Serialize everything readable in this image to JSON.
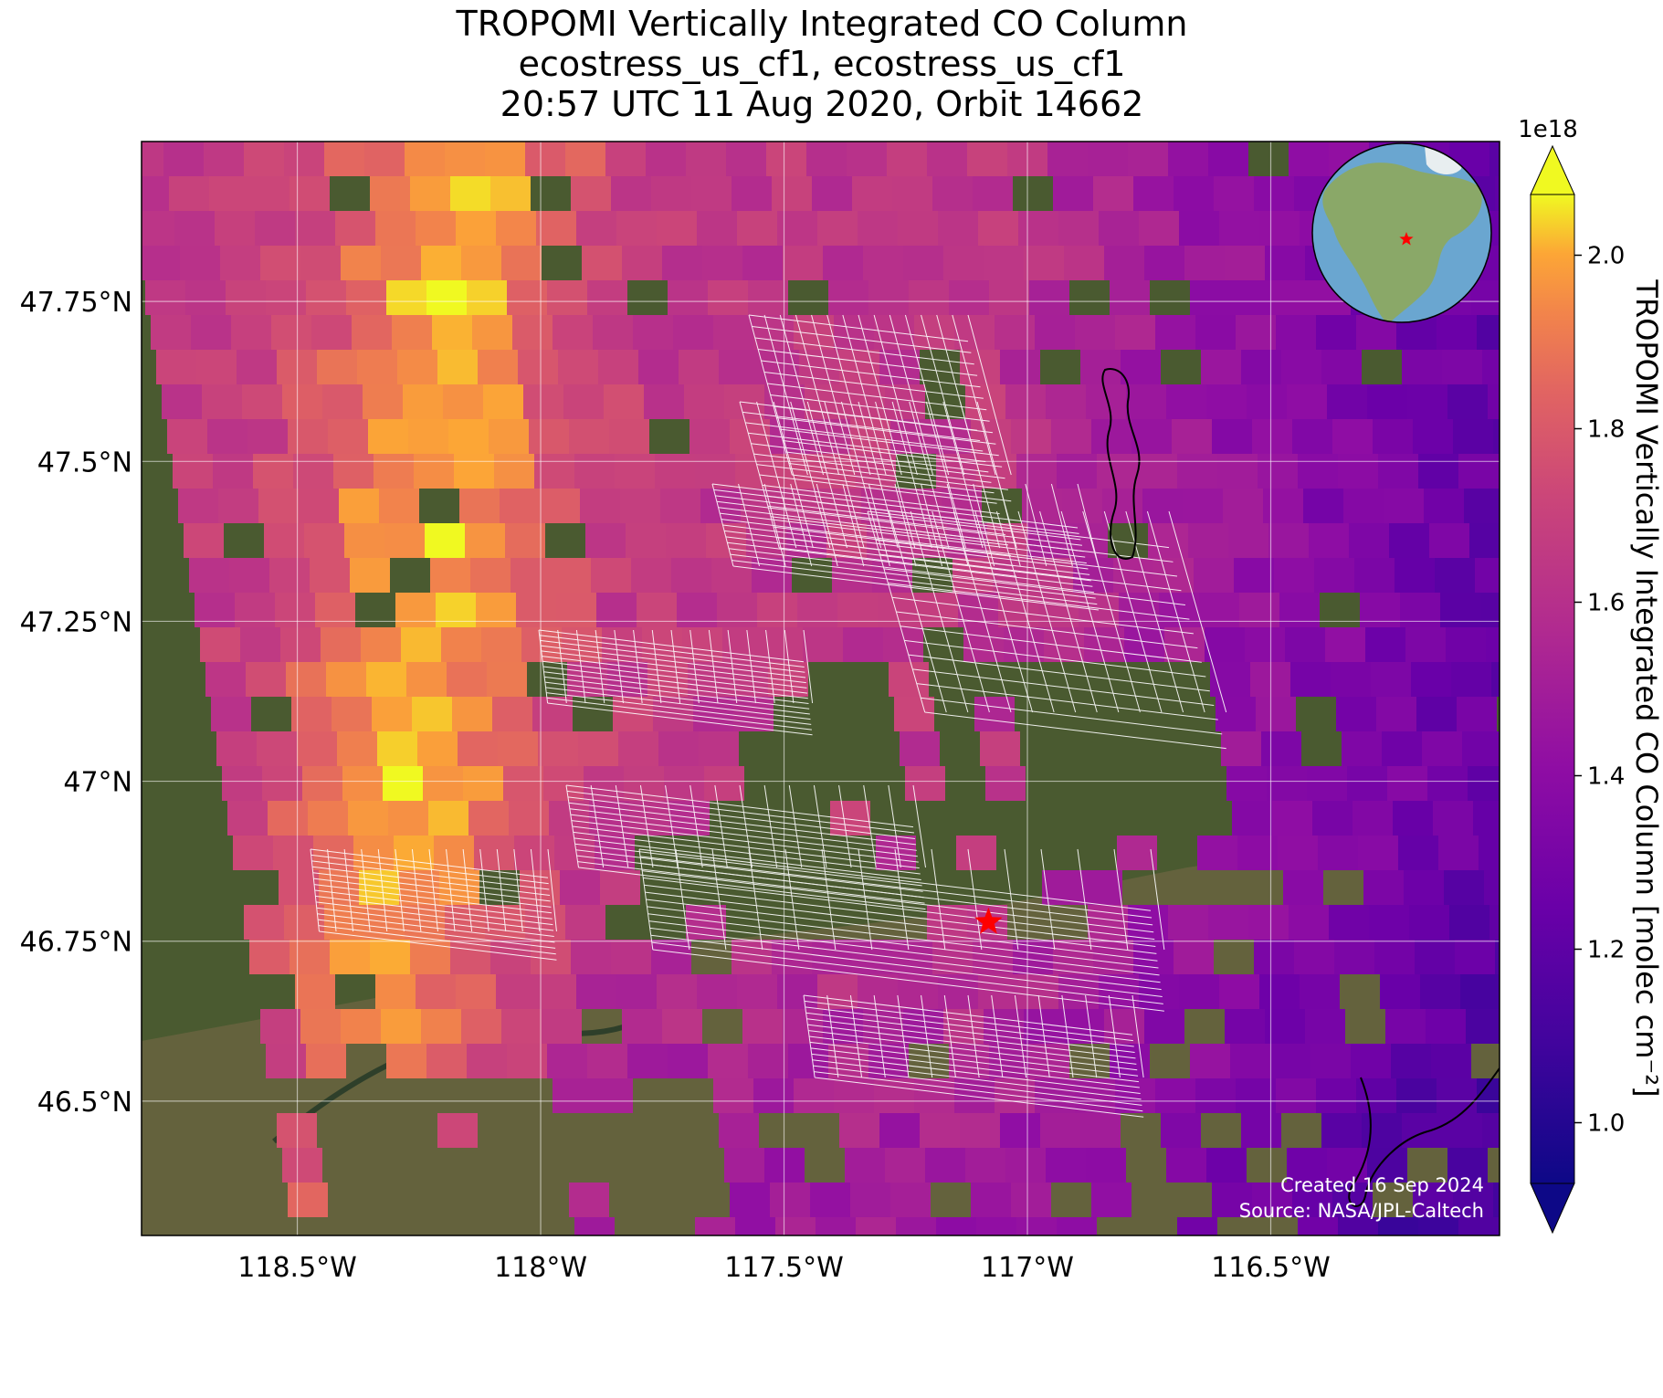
{
  "title": {
    "line1": "TROPOMI Vertically Integrated CO Column",
    "line2": "ecostress_us_cf1, ecostress_us_cf1",
    "line3": "20:57 UTC 11 Aug 2020, Orbit 14662"
  },
  "map": {
    "lon_range": [
      -118.82,
      -116.03
    ],
    "lat_range": [
      46.29,
      48.0
    ],
    "lon_ticks": [
      {
        "value": -118.5,
        "label": "118.5°W"
      },
      {
        "value": -118.0,
        "label": "118°W"
      },
      {
        "value": -117.5,
        "label": "117.5°W"
      },
      {
        "value": -117.0,
        "label": "117°W"
      },
      {
        "value": -116.5,
        "label": "116.5°W"
      }
    ],
    "lat_ticks": [
      {
        "value": 47.75,
        "label": "47.75°N"
      },
      {
        "value": 47.5,
        "label": "47.5°N"
      },
      {
        "value": 47.25,
        "label": "47.25°N"
      },
      {
        "value": 47.0,
        "label": "47°N"
      },
      {
        "value": 46.75,
        "label": "46.75°N"
      },
      {
        "value": 46.5,
        "label": "46.5°N"
      }
    ],
    "site_marker": {
      "lon": -117.08,
      "lat": 46.78,
      "color": "#ff0000"
    },
    "colormap": "plasma"
  },
  "colorbar": {
    "label": "TROPOMI Vertically Integrated CO Column [molec cm⁻²]",
    "multiplier": "1e18",
    "min": 0.93,
    "max": 2.07,
    "ticks": [
      {
        "value": 1.0,
        "label": "1.0"
      },
      {
        "value": 1.2,
        "label": "1.2"
      },
      {
        "value": 1.4,
        "label": "1.4"
      },
      {
        "value": 1.6,
        "label": "1.6"
      },
      {
        "value": 1.8,
        "label": "1.8"
      },
      {
        "value": 2.0,
        "label": "2.0"
      }
    ]
  },
  "inset": {
    "marker_color": "#ff0000",
    "ocean_color": "#6aa6d0",
    "land_color": "#8aa868"
  },
  "credits": {
    "created": "Created 16 Sep 2024",
    "source": "Source: NASA/JPL-Caltech"
  }
}
